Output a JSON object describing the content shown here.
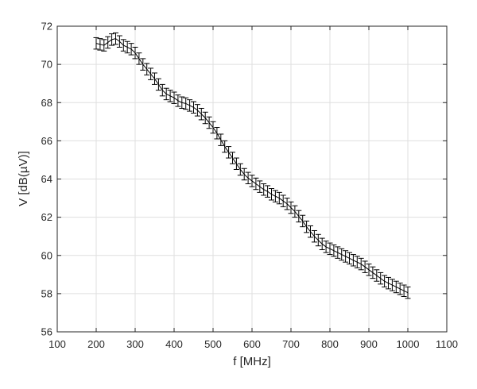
{
  "chart_data": {
    "type": "line",
    "xlabel": "f [MHz]",
    "ylabel": "V [dB(µV)]",
    "xlim": [
      100,
      1100
    ],
    "ylim": [
      56,
      72
    ],
    "xticks": [
      "100",
      "200",
      "300",
      "400",
      "500",
      "600",
      "700",
      "800",
      "900",
      "1000",
      "1100"
    ],
    "yticks": [
      "56",
      "58",
      "60",
      "62",
      "64",
      "66",
      "68",
      "70",
      "72"
    ],
    "grid": true,
    "error_bar_halfwidth": 0.3,
    "series": [
      {
        "x": [
          200,
          210,
          220,
          230,
          240,
          250,
          260,
          270,
          280,
          290,
          300,
          310,
          320,
          330,
          340,
          350,
          360,
          370,
          380,
          390,
          400,
          410,
          420,
          430,
          440,
          450,
          460,
          470,
          480,
          490,
          500,
          510,
          520,
          530,
          540,
          550,
          560,
          570,
          580,
          590,
          600,
          610,
          620,
          630,
          640,
          650,
          660,
          670,
          680,
          690,
          700,
          710,
          720,
          730,
          740,
          750,
          760,
          770,
          780,
          790,
          800,
          810,
          820,
          830,
          840,
          850,
          860,
          870,
          880,
          890,
          900,
          910,
          920,
          930,
          940,
          950,
          960,
          970,
          980,
          990,
          1000
        ],
        "y": [
          71.1,
          71.05,
          71.0,
          71.15,
          71.3,
          71.35,
          71.2,
          71.0,
          70.9,
          70.8,
          70.6,
          70.3,
          70.0,
          69.75,
          69.5,
          69.25,
          68.95,
          68.65,
          68.45,
          68.35,
          68.25,
          68.1,
          68.0,
          67.95,
          67.85,
          67.75,
          67.6,
          67.4,
          67.2,
          66.95,
          66.7,
          66.4,
          66.05,
          65.7,
          65.4,
          65.1,
          64.8,
          64.5,
          64.25,
          64.05,
          63.9,
          63.75,
          63.6,
          63.45,
          63.35,
          63.2,
          63.1,
          63.0,
          62.85,
          62.7,
          62.5,
          62.3,
          62.05,
          61.8,
          61.5,
          61.25,
          61.0,
          60.8,
          60.6,
          60.45,
          60.35,
          60.25,
          60.15,
          60.05,
          59.95,
          59.85,
          59.75,
          59.65,
          59.55,
          59.4,
          59.25,
          59.1,
          58.95,
          58.8,
          58.65,
          58.55,
          58.45,
          58.35,
          58.25,
          58.15,
          58.05
        ]
      }
    ]
  }
}
